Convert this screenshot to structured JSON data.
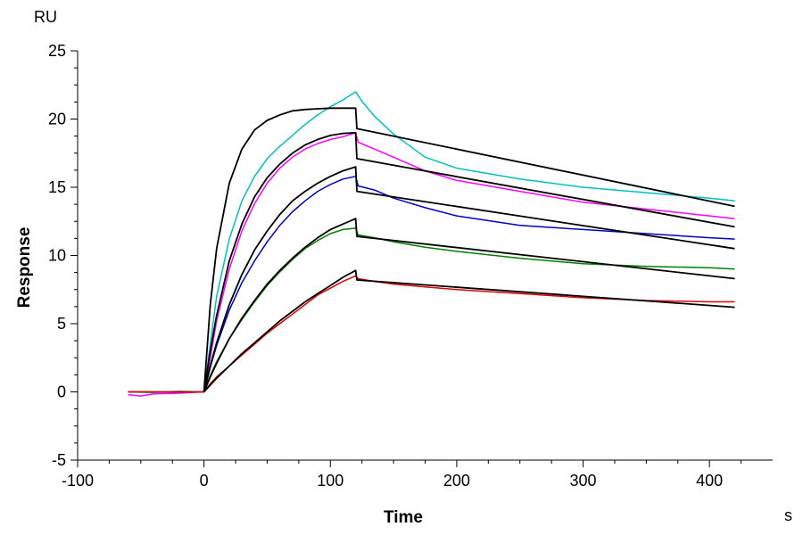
{
  "chart_data": {
    "type": "line",
    "title": "",
    "xlabel": "Time",
    "ylabel": "Response",
    "x_unit": "s",
    "y_unit": "RU",
    "xlim": [
      -100,
      450
    ],
    "ylim": [
      -5,
      25
    ],
    "x_ticks": [
      -100,
      0,
      100,
      200,
      300,
      400
    ],
    "y_ticks": [
      -5,
      0,
      5,
      10,
      15,
      20,
      25
    ],
    "grid": false,
    "legend": "none",
    "series": [
      {
        "color": "#00c0c0",
        "kind": "measured",
        "x": [
          -60,
          -40,
          -20,
          0,
          5,
          10,
          20,
          30,
          40,
          50,
          60,
          70,
          80,
          90,
          100,
          110,
          120,
          125,
          135,
          150,
          175,
          200,
          250,
          300,
          350,
          400,
          420
        ],
        "y": [
          0.0,
          -0.05,
          0.05,
          0.0,
          3.5,
          7.0,
          11.2,
          14.0,
          15.8,
          17.1,
          18.0,
          18.8,
          19.6,
          20.3,
          20.9,
          21.4,
          22.0,
          21.3,
          20.2,
          18.9,
          17.2,
          16.4,
          15.6,
          15.0,
          14.6,
          14.2,
          14.0
        ]
      },
      {
        "color": "#ff00ff",
        "kind": "measured",
        "x": [
          -60,
          -50,
          -40,
          -20,
          0,
          5,
          10,
          20,
          30,
          40,
          50,
          60,
          70,
          80,
          90,
          100,
          110,
          120,
          122,
          135,
          150,
          175,
          200,
          250,
          300,
          350,
          400,
          420
        ],
        "y": [
          -0.2,
          -0.3,
          -0.15,
          -0.1,
          0.0,
          2.5,
          5.2,
          9.0,
          11.8,
          13.8,
          15.3,
          16.4,
          17.2,
          17.8,
          18.2,
          18.5,
          18.7,
          19.0,
          18.3,
          17.8,
          17.2,
          16.2,
          15.5,
          14.7,
          13.9,
          13.4,
          12.9,
          12.7
        ]
      },
      {
        "color": "#0000cc",
        "kind": "measured",
        "x": [
          -60,
          -30,
          0,
          5,
          10,
          20,
          30,
          40,
          50,
          60,
          70,
          80,
          90,
          100,
          110,
          120,
          122,
          135,
          150,
          175,
          200,
          250,
          300,
          350,
          400,
          420
        ],
        "y": [
          0.0,
          0.0,
          0.0,
          1.8,
          3.4,
          6.0,
          8.0,
          9.6,
          11.0,
          12.2,
          13.2,
          14.0,
          14.7,
          15.2,
          15.6,
          15.8,
          15.1,
          14.8,
          14.2,
          13.5,
          12.9,
          12.2,
          11.9,
          11.6,
          11.3,
          11.2
        ]
      },
      {
        "color": "#008000",
        "kind": "measured",
        "x": [
          -60,
          -30,
          0,
          5,
          10,
          20,
          30,
          40,
          50,
          60,
          70,
          80,
          90,
          100,
          110,
          120,
          122,
          135,
          150,
          175,
          200,
          250,
          300,
          350,
          400,
          420
        ],
        "y": [
          0.0,
          0.0,
          0.0,
          1.2,
          2.2,
          3.9,
          5.3,
          6.6,
          7.8,
          8.8,
          9.7,
          10.5,
          11.1,
          11.6,
          11.9,
          12.0,
          11.5,
          11.3,
          11.0,
          10.6,
          10.3,
          9.8,
          9.4,
          9.2,
          9.1,
          9.0
        ]
      },
      {
        "color": "#e00000",
        "kind": "measured",
        "x": [
          -60,
          -30,
          0,
          5,
          10,
          20,
          30,
          40,
          50,
          60,
          70,
          80,
          90,
          100,
          110,
          120,
          122,
          135,
          150,
          175,
          200,
          250,
          300,
          350,
          400,
          420
        ],
        "y": [
          0.0,
          0.0,
          0.0,
          0.6,
          1.1,
          1.9,
          2.7,
          3.5,
          4.3,
          5.0,
          5.7,
          6.4,
          7.1,
          7.6,
          8.1,
          8.5,
          8.3,
          8.1,
          7.9,
          7.7,
          7.5,
          7.2,
          6.9,
          6.7,
          6.6,
          6.6
        ]
      },
      {
        "color": "#000000",
        "kind": "fit",
        "x": [
          0,
          5,
          10,
          20,
          30,
          40,
          50,
          60,
          70,
          80,
          90,
          100,
          110,
          120,
          121,
          420
        ],
        "y": [
          0.0,
          6.4,
          10.5,
          15.3,
          17.8,
          19.2,
          19.9,
          20.3,
          20.6,
          20.7,
          20.75,
          20.8,
          20.8,
          20.8,
          19.3,
          13.6
        ]
      },
      {
        "color": "#000000",
        "kind": "fit",
        "x": [
          0,
          5,
          10,
          20,
          30,
          40,
          50,
          60,
          70,
          80,
          90,
          100,
          110,
          120,
          121,
          420
        ],
        "y": [
          0.0,
          3.0,
          5.6,
          9.6,
          12.3,
          14.3,
          15.7,
          16.7,
          17.5,
          18.1,
          18.5,
          18.8,
          18.95,
          19.0,
          17.1,
          12.1
        ]
      },
      {
        "color": "#000000",
        "kind": "fit",
        "x": [
          0,
          5,
          10,
          20,
          30,
          40,
          50,
          60,
          70,
          80,
          90,
          100,
          110,
          120,
          121,
          420
        ],
        "y": [
          0.0,
          1.9,
          3.6,
          6.4,
          8.6,
          10.4,
          11.8,
          13.0,
          14.0,
          14.7,
          15.3,
          15.8,
          16.2,
          16.5,
          14.7,
          10.5
        ]
      },
      {
        "color": "#000000",
        "kind": "fit",
        "x": [
          0,
          5,
          10,
          20,
          30,
          40,
          50,
          60,
          70,
          80,
          90,
          100,
          110,
          120,
          121,
          420
        ],
        "y": [
          0.0,
          1.1,
          2.1,
          3.9,
          5.4,
          6.7,
          7.9,
          8.9,
          9.8,
          10.6,
          11.3,
          11.9,
          12.3,
          12.7,
          11.4,
          8.3
        ]
      },
      {
        "color": "#000000",
        "kind": "fit",
        "x": [
          0,
          10,
          20,
          30,
          40,
          50,
          60,
          70,
          80,
          90,
          100,
          110,
          120,
          121,
          420
        ],
        "y": [
          0.0,
          1.0,
          1.9,
          2.8,
          3.6,
          4.4,
          5.2,
          5.9,
          6.6,
          7.2,
          7.8,
          8.4,
          8.9,
          8.2,
          6.2
        ]
      }
    ]
  }
}
